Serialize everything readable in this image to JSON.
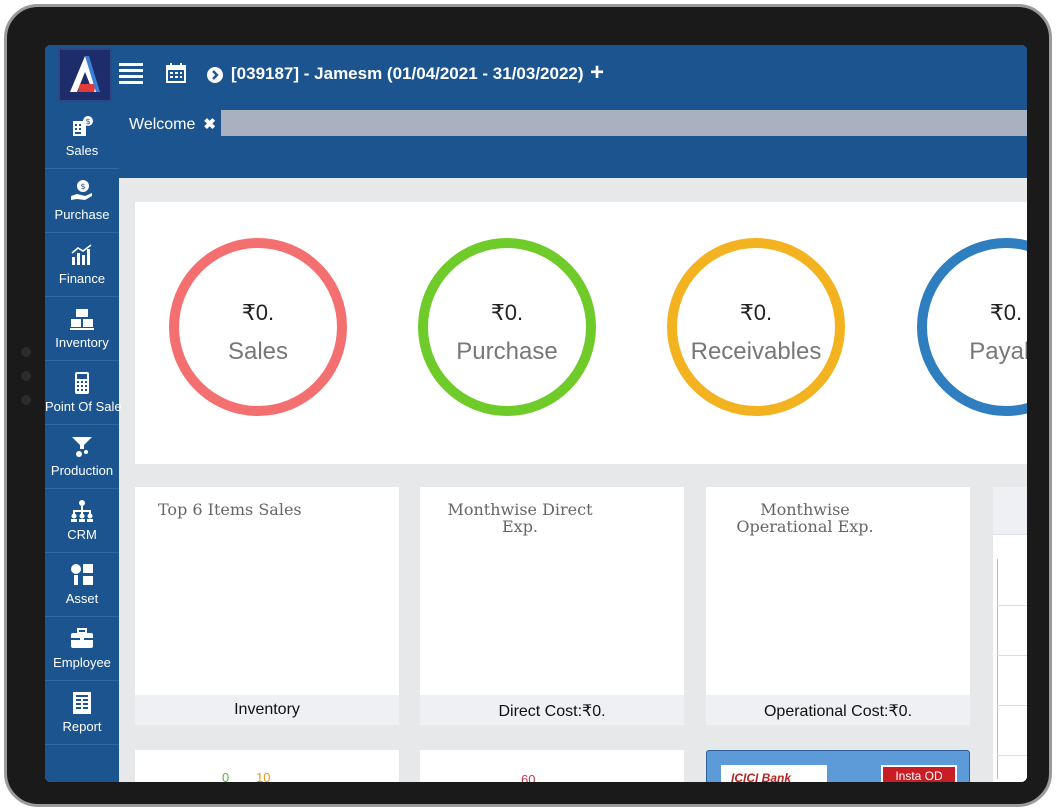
{
  "header": {
    "company": "[039187] - Jamesm (01/04/2021 - 31/03/2022)"
  },
  "tabs": [
    {
      "label": "Welcome"
    }
  ],
  "sidebar": {
    "items": [
      {
        "label": "Sales",
        "icon": "sales-icon"
      },
      {
        "label": "Purchase",
        "icon": "purchase-icon"
      },
      {
        "label": "Finance",
        "icon": "finance-icon"
      },
      {
        "label": "Inventory",
        "icon": "inventory-icon"
      },
      {
        "label": "Point Of Sale",
        "icon": "point-of-sale-icon"
      },
      {
        "label": "Production",
        "icon": "production-icon"
      },
      {
        "label": "CRM",
        "icon": "crm-icon"
      },
      {
        "label": "Asset",
        "icon": "asset-icon"
      },
      {
        "label": "Employee",
        "icon": "employee-icon"
      },
      {
        "label": "Report",
        "icon": "report-icon"
      }
    ]
  },
  "kpis": [
    {
      "value": "₹0.",
      "label": "Sales",
      "color": "#f47070"
    },
    {
      "value": "₹0.",
      "label": "Purchase",
      "color": "#6fcb2a"
    },
    {
      "value": "₹0.",
      "label": "Receivables",
      "color": "#f3b21f"
    },
    {
      "value": "₹0.",
      "label": "Payabl",
      "color": "#2f7ec0"
    }
  ],
  "cards": [
    {
      "title_line1": "Top 6 Items Sales",
      "title_line2": "",
      "footer": "Inventory"
    },
    {
      "title_line1": "Monthwise Direct",
      "title_line2": "Exp.",
      "footer": "Direct Cost:₹0."
    },
    {
      "title_line1": "Monthwise",
      "title_line2": "Operational Exp.",
      "footer": "Operational Cost:₹0."
    }
  ],
  "bottom": {
    "gauge1_low": "0",
    "gauge1_high": "10",
    "gauge2_high": "60",
    "bank_left": "ICICI Bank",
    "bank_right": "Insta OD"
  },
  "colors": {
    "primary": "#1c548f",
    "tab_strip": "#a9b1c1"
  }
}
